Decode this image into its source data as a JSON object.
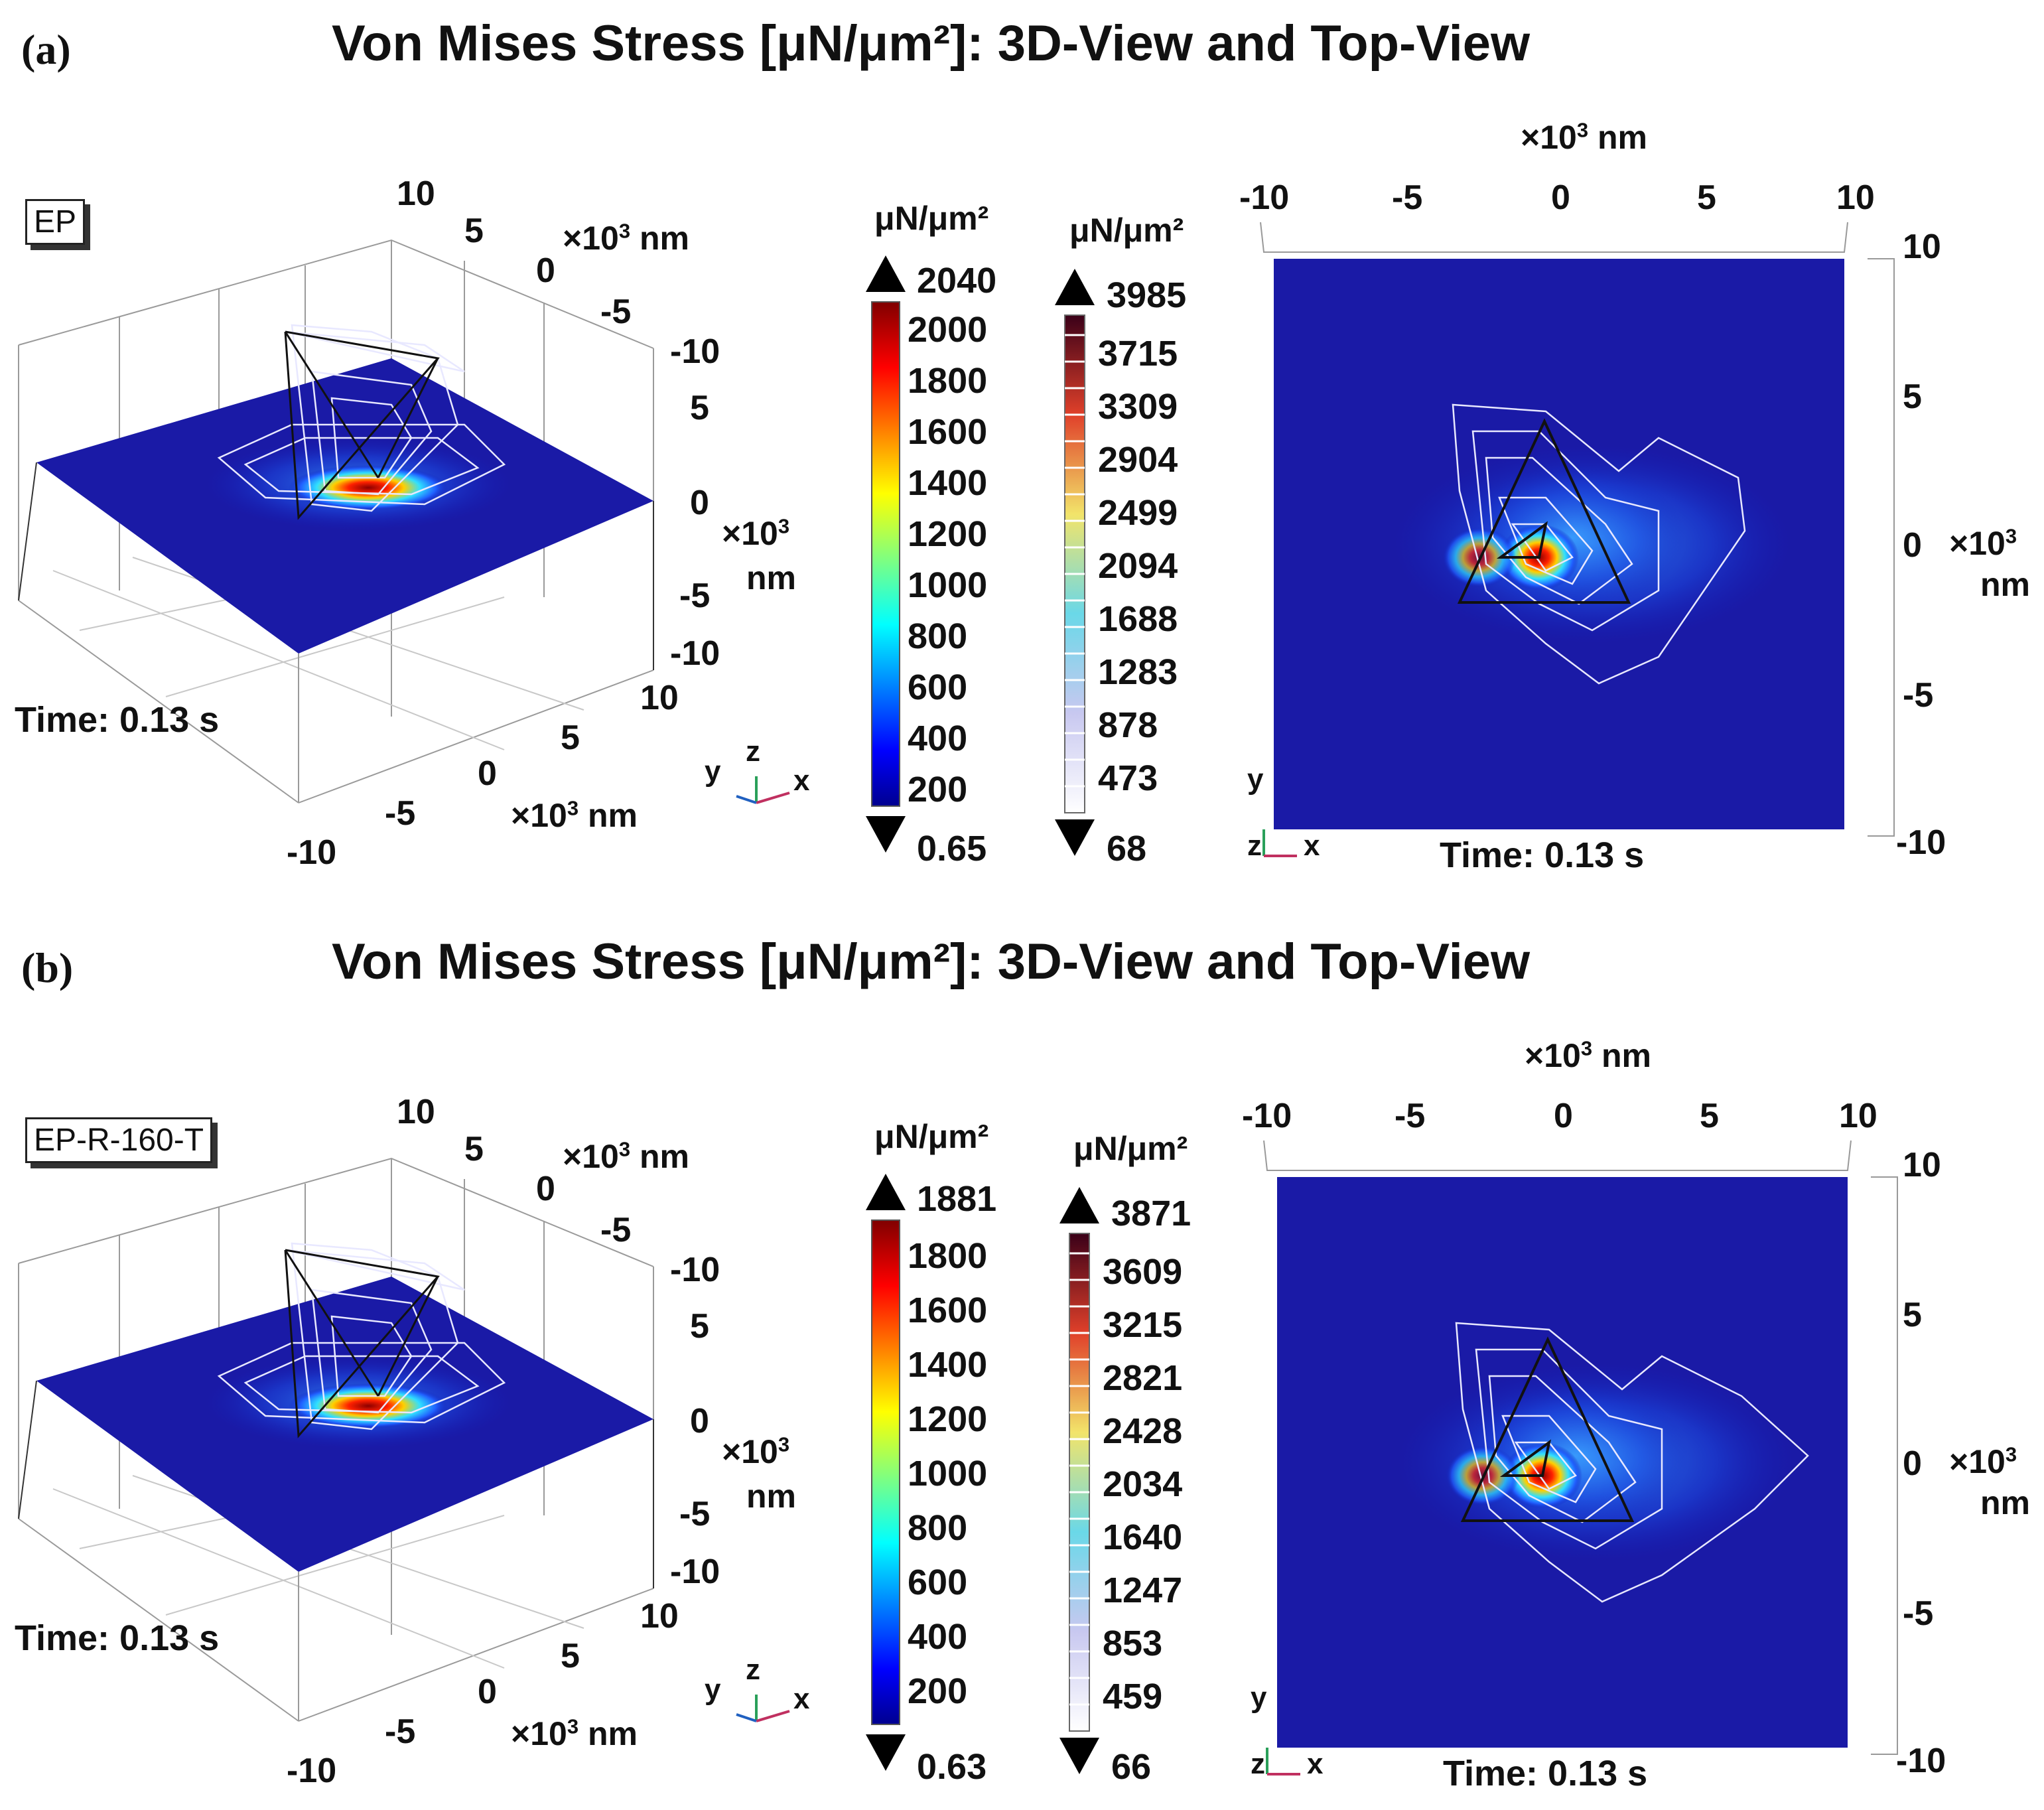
{
  "panels": [
    {
      "label": "(a)",
      "title": "Von Mises Stress [μN/μm²]: 3D-View and Top-View",
      "case_label": "EP",
      "view3d": {
        "ticks_back": [
          "10",
          "5",
          "0",
          "-5",
          "-10"
        ],
        "ticks_z": [
          "5",
          "0",
          "-5",
          "-10"
        ],
        "ticks_front": [
          "10",
          "5",
          "0",
          "-5",
          "-10"
        ],
        "unit_prefix": "×10",
        "unit_exp": "3",
        "unit_nm": "nm",
        "time": "Time: 0.13 s",
        "triad": {
          "y": "y",
          "z": "z",
          "x": "x"
        }
      },
      "colorbar_surface": {
        "unit": "μN/μm²",
        "max": "2040",
        "min": "0.65",
        "ticks": [
          "2000",
          "1800",
          "1600",
          "1400",
          "1200",
          "1000",
          "800",
          "600",
          "400",
          "200"
        ]
      },
      "colorbar_contour": {
        "unit": "μN/μm²",
        "max": "3985",
        "min": "68",
        "ticks": [
          "3715",
          "3309",
          "2904",
          "2499",
          "2094",
          "1688",
          "1283",
          "878",
          "473"
        ]
      },
      "topview": {
        "x_ticks": [
          "-10",
          "-5",
          "0",
          "5",
          "10"
        ],
        "y_ticks": [
          "10",
          "5",
          "0",
          "-5",
          "-10"
        ],
        "unit_prefix": "×10",
        "unit_exp": "3",
        "unit_nm": "nm",
        "time": "Time: 0.13 s",
        "triad": {
          "y": "y",
          "z": "z",
          "x": "x"
        }
      }
    },
    {
      "label": "(b)",
      "title": "Von Mises Stress [μN/μm²]: 3D-View and Top-View",
      "case_label": "EP-R-160-T",
      "view3d": {
        "ticks_back": [
          "10",
          "5",
          "0",
          "-5",
          "-10"
        ],
        "ticks_z": [
          "5",
          "0",
          "-5",
          "-10"
        ],
        "ticks_front": [
          "10",
          "5",
          "0",
          "-5",
          "-10"
        ],
        "unit_prefix": "×10",
        "unit_exp": "3",
        "unit_nm": "nm",
        "time": "Time: 0.13 s",
        "triad": {
          "y": "y",
          "z": "z",
          "x": "x"
        }
      },
      "colorbar_surface": {
        "unit": "μN/μm²",
        "max": "1881",
        "min": "0.63",
        "ticks": [
          "1800",
          "1600",
          "1400",
          "1200",
          "1000",
          "800",
          "600",
          "400",
          "200"
        ]
      },
      "colorbar_contour": {
        "unit": "μN/μm²",
        "max": "3871",
        "min": "66",
        "ticks": [
          "3609",
          "3215",
          "2821",
          "2428",
          "2034",
          "1640",
          "1247",
          "853",
          "459"
        ]
      },
      "topview": {
        "x_ticks": [
          "-10",
          "-5",
          "0",
          "5",
          "10"
        ],
        "y_ticks": [
          "10",
          "5",
          "0",
          "-5",
          "-10"
        ],
        "unit_prefix": "×10",
        "unit_exp": "3",
        "unit_nm": "nm",
        "time": "Time: 0.13 s",
        "triad": {
          "y": "y",
          "z": "z",
          "x": "x"
        }
      }
    }
  ]
}
